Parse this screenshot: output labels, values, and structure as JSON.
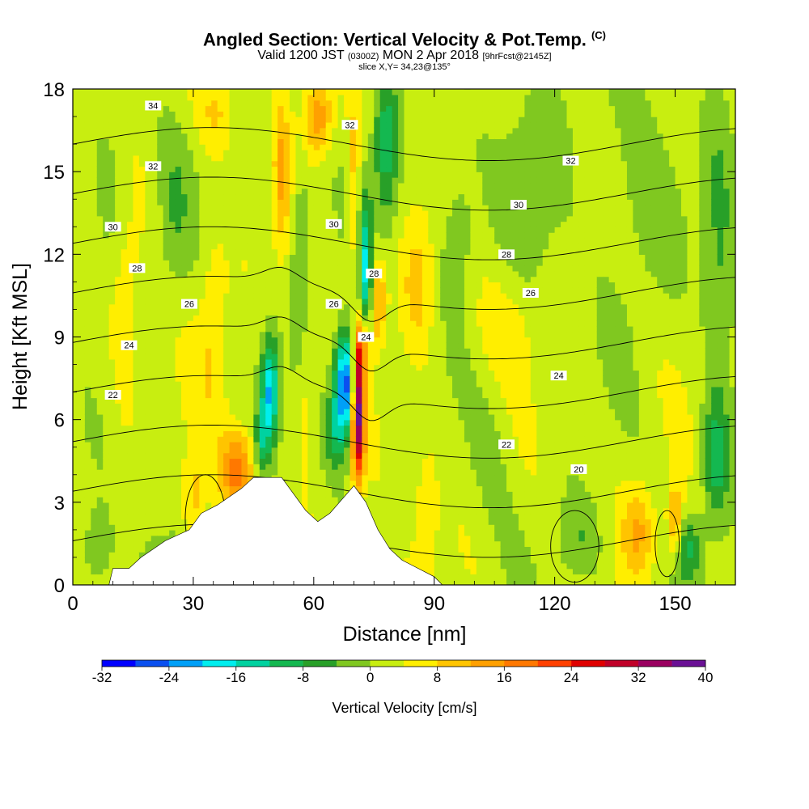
{
  "title": {
    "main": "Angled Section: Vertical Velocity & Pot.Temp.",
    "main_suffix": "(C)",
    "valid_a": "Valid 1200 JST",
    "valid_b": "(0300Z)",
    "valid_c": "MON 2 Apr 2018",
    "valid_d": "[9hrFcst@2145Z]",
    "slice": "slice X,Y= 34,23@135°"
  },
  "chart_data": {
    "type": "heatmap",
    "xlabel": "Distance [nm]",
    "ylabel": "Height [Kft MSL]",
    "xlim": [
      0,
      165
    ],
    "ylim": [
      0,
      18
    ],
    "x_ticks": [
      "0",
      "30",
      "60",
      "90",
      "120",
      "150"
    ],
    "y_ticks": [
      "0",
      "3",
      "6",
      "9",
      "12",
      "15",
      "18"
    ],
    "colorbar": {
      "label": "Vertical Velocity [cm/s]",
      "tick_labels": [
        "-32",
        "-24",
        "-16",
        "-8",
        "0",
        "8",
        "16",
        "24",
        "32",
        "40"
      ],
      "bounds": [
        -32,
        40
      ],
      "step": 4,
      "colors": [
        "#0000ff",
        "#0a50f0",
        "#00a0f8",
        "#00eeee",
        "#00d2a0",
        "#14b850",
        "#28a028",
        "#80c820",
        "#c8ee10",
        "#ffee00",
        "#ffc400",
        "#ffa000",
        "#ff7800",
        "#ff4000",
        "#e00000",
        "#c00028",
        "#9a0060",
        "#6a1095"
      ]
    },
    "contours": [
      {
        "label": "34",
        "at": [
          [
            20,
            17.4
          ]
        ]
      },
      {
        "label": "32",
        "at": [
          [
            20,
            15.2
          ],
          [
            69,
            16.7
          ],
          [
            124,
            15.4
          ]
        ]
      },
      {
        "label": "30",
        "at": [
          [
            10,
            13.0
          ],
          [
            65,
            13.1
          ],
          [
            111,
            13.8
          ]
        ]
      },
      {
        "label": "28",
        "at": [
          [
            16,
            11.5
          ],
          [
            75,
            11.3
          ],
          [
            108,
            12.0
          ]
        ]
      },
      {
        "label": "26",
        "at": [
          [
            29,
            10.2
          ],
          [
            65,
            10.2
          ],
          [
            114,
            10.6
          ]
        ]
      },
      {
        "label": "24",
        "at": [
          [
            14,
            8.7
          ],
          [
            73,
            9.0
          ],
          [
            121,
            7.6
          ]
        ]
      },
      {
        "label": "22",
        "at": [
          [
            10,
            6.9
          ],
          [
            108,
            5.1
          ]
        ]
      },
      {
        "label": "20",
        "at": [
          [
            126,
            4.2
          ]
        ]
      }
    ],
    "terrain": [
      [
        0,
        0
      ],
      [
        9,
        0
      ],
      [
        10,
        0.6
      ],
      [
        14,
        0.6
      ],
      [
        17,
        1.0
      ],
      [
        20,
        1.3
      ],
      [
        23,
        1.6
      ],
      [
        29,
        2.0
      ],
      [
        32,
        2.6
      ],
      [
        36,
        2.9
      ],
      [
        39,
        3.2
      ],
      [
        42,
        3.5
      ],
      [
        45,
        3.9
      ],
      [
        52,
        3.9
      ],
      [
        55,
        3.3
      ],
      [
        58,
        2.7
      ],
      [
        61,
        2.3
      ],
      [
        64,
        2.6
      ],
      [
        67,
        3.1
      ],
      [
        70,
        3.6
      ],
      [
        73,
        3.0
      ],
      [
        76,
        2.0
      ],
      [
        79,
        1.3
      ],
      [
        82,
        0.9
      ],
      [
        86,
        0.6
      ],
      [
        90,
        0.3
      ],
      [
        92,
        0
      ],
      [
        165,
        0
      ]
    ],
    "w_field": [
      {
        "x": 49,
        "y": 7.0,
        "sx": 2.2,
        "sy": 1.9,
        "w": -22
      },
      {
        "x": 47,
        "y": 5.2,
        "sx": 1.6,
        "sy": 1.2,
        "w": -10
      },
      {
        "x": 68,
        "y": 7.3,
        "sx": 2.8,
        "sy": 1.9,
        "w": -32
      },
      {
        "x": 65,
        "y": 5.5,
        "sx": 2.5,
        "sy": 1.4,
        "w": -10
      },
      {
        "x": 71,
        "y": 6.3,
        "sx": 1.6,
        "sy": 2.3,
        "w": 38
      },
      {
        "x": 72,
        "y": 8.6,
        "sx": 2.0,
        "sy": 1.3,
        "w": 14
      },
      {
        "x": 73,
        "y": 11.4,
        "sx": 1.6,
        "sy": 2.6,
        "w": -18
      },
      {
        "x": 76,
        "y": 10.3,
        "sx": 2.0,
        "sy": 1.6,
        "w": 12
      },
      {
        "x": 70,
        "y": 14.5,
        "sx": 1.4,
        "sy": 3.5,
        "w": 8
      },
      {
        "x": 57,
        "y": 12.5,
        "sx": 2.4,
        "sy": 3.0,
        "w": -8
      },
      {
        "x": 61,
        "y": 17.0,
        "sx": 3.5,
        "sy": 1.4,
        "w": 14
      },
      {
        "x": 52,
        "y": 15.0,
        "sx": 2.0,
        "sy": 3.0,
        "w": 9
      },
      {
        "x": 78,
        "y": 16.0,
        "sx": 3.0,
        "sy": 3.0,
        "w": -12
      },
      {
        "x": 41,
        "y": 4.2,
        "sx": 4.0,
        "sy": 1.5,
        "w": 16
      },
      {
        "x": 35,
        "y": 9.5,
        "sx": 3.5,
        "sy": 3.5,
        "w": 6
      },
      {
        "x": 36,
        "y": 17.2,
        "sx": 4.5,
        "sy": 1.4,
        "w": 6
      },
      {
        "x": 86,
        "y": 11.0,
        "sx": 4.0,
        "sy": 2.6,
        "w": 7
      },
      {
        "x": 96,
        "y": 13.0,
        "sx": 5.0,
        "sy": 3.0,
        "w": -6
      },
      {
        "x": 115,
        "y": 15.0,
        "sx": 8.0,
        "sy": 4.0,
        "w": -5
      },
      {
        "x": 140,
        "y": 14.0,
        "sx": 10.0,
        "sy": 5.0,
        "w": -4
      },
      {
        "x": 161,
        "y": 11.0,
        "sx": 4.0,
        "sy": 7.0,
        "w": -7
      },
      {
        "x": 160,
        "y": 4.5,
        "sx": 3.0,
        "sy": 2.0,
        "w": -10
      },
      {
        "x": 153,
        "y": 1.4,
        "sx": 3.5,
        "sy": 1.2,
        "w": -10
      },
      {
        "x": 126,
        "y": 1.6,
        "sx": 6.0,
        "sy": 1.6,
        "w": -6
      },
      {
        "x": 141,
        "y": 2.0,
        "sx": 4.0,
        "sy": 1.6,
        "w": 10
      },
      {
        "x": 150,
        "y": 2.2,
        "sx": 2.0,
        "sy": 1.4,
        "w": 14
      },
      {
        "x": 30,
        "y": 3.0,
        "sx": 3.0,
        "sy": 1.8,
        "w": 8
      },
      {
        "x": 22,
        "y": 0.9,
        "sx": 5.0,
        "sy": 1.0,
        "w": -8
      },
      {
        "x": 6,
        "y": 1.2,
        "sx": 4.0,
        "sy": 1.5,
        "w": -7
      },
      {
        "x": 13,
        "y": 10.0,
        "sx": 3.5,
        "sy": 4.0,
        "w": 6
      },
      {
        "x": 10,
        "y": 14.0,
        "sx": 5.0,
        "sy": 3.0,
        "w": -5
      },
      {
        "x": 25,
        "y": 13.5,
        "sx": 4.0,
        "sy": 3.0,
        "w": -5
      },
      {
        "x": 104,
        "y": 5.0,
        "sx": 6.0,
        "sy": 3.0,
        "w": -3
      },
      {
        "x": 108,
        "y": 9.5,
        "sx": 8.0,
        "sy": 2.0,
        "w": 4
      },
      {
        "x": 88,
        "y": 3.0,
        "sx": 3.0,
        "sy": 2.5,
        "w": 5
      },
      {
        "x": 58,
        "y": 7.0,
        "sx": 1.5,
        "sy": 2.5,
        "w": 4
      }
    ]
  }
}
